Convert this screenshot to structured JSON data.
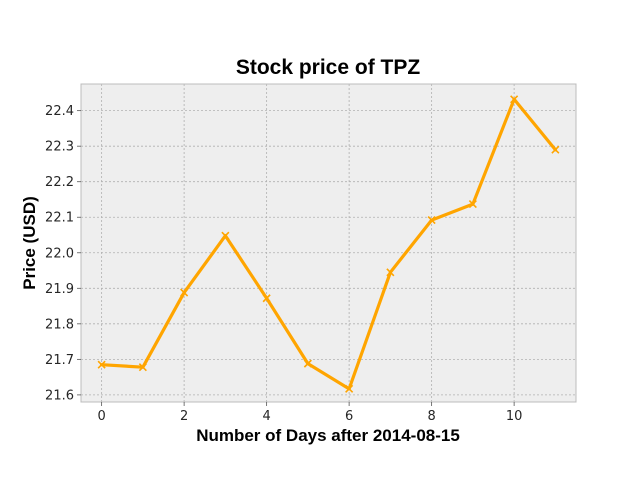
{
  "chart_data": {
    "type": "line",
    "title": "Stock price of TPZ",
    "xlabel": "Number of Days after 2014-08-15",
    "ylabel": "Price (USD)",
    "x": [
      0,
      1,
      2,
      3,
      4,
      5,
      6,
      7,
      8,
      9,
      10,
      11
    ],
    "series": [
      {
        "values": [
          21.685,
          21.678,
          21.888,
          22.048,
          21.872,
          21.688,
          21.617,
          21.945,
          22.092,
          22.137,
          22.432,
          22.29
        ],
        "color": "#FFA500",
        "marker": "x"
      }
    ],
    "xlim": [
      -0.5,
      11.5
    ],
    "ylim": [
      21.58,
      22.475
    ],
    "xticks": [
      0,
      2,
      4,
      6,
      8,
      10
    ],
    "xtick_labels": [
      "0",
      "2",
      "4",
      "6",
      "8",
      "10"
    ],
    "yticks": [
      21.6,
      21.7,
      21.8,
      21.9,
      22.0,
      22.1,
      22.2,
      22.3,
      22.4
    ],
    "ytick_labels": [
      "21.6",
      "21.7",
      "21.8",
      "21.9",
      "22.0",
      "22.1",
      "22.2",
      "22.3",
      "22.4"
    ],
    "grid": true,
    "background": "#EEEEEE",
    "grid_color": "#B0B0B0"
  }
}
